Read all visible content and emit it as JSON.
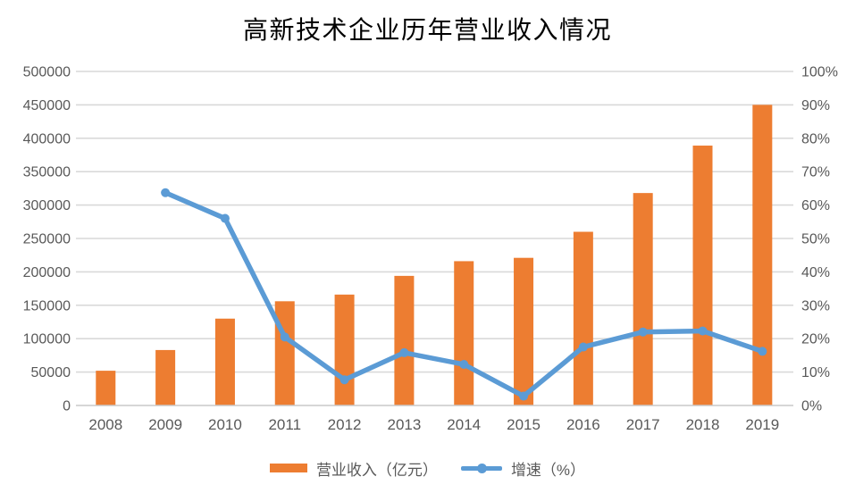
{
  "chart_data": {
    "type": "combo-bar-line",
    "title": "高新技术企业历年营业收入情况",
    "categories": [
      "2008",
      "2009",
      "2010",
      "2011",
      "2012",
      "2013",
      "2014",
      "2015",
      "2016",
      "2017",
      "2018",
      "2019"
    ],
    "series": [
      {
        "name": "营业收入（亿元）",
        "type": "bar",
        "axis": "left",
        "color": "#ED7D31",
        "values": [
          52000,
          83000,
          130000,
          156000,
          166000,
          194000,
          216000,
          221000,
          260000,
          318000,
          389000,
          450000
        ]
      },
      {
        "name": "增速（%）",
        "type": "line",
        "axis": "right",
        "color": "#5B9BD5",
        "values": [
          null,
          63.7,
          56.0,
          20.5,
          7.7,
          15.8,
          12.3,
          2.8,
          17.5,
          22.0,
          22.3,
          16.2
        ]
      }
    ],
    "left_axis": {
      "min": 0,
      "max": 500000,
      "step": 50000,
      "labels": [
        "0",
        "50000",
        "100000",
        "150000",
        "200000",
        "250000",
        "300000",
        "350000",
        "400000",
        "450000",
        "500000"
      ]
    },
    "right_axis": {
      "min": 0,
      "max": 100,
      "step": 10,
      "labels": [
        "0%",
        "10%",
        "20%",
        "30%",
        "40%",
        "50%",
        "60%",
        "70%",
        "80%",
        "90%",
        "100%"
      ]
    },
    "grid": true,
    "legend_position": "bottom"
  },
  "colors": {
    "bar": "#ED7D31",
    "line": "#5B9BD5",
    "gridline": "#D9D9D9",
    "axis_line": "#C9C9C9",
    "text": "#595959",
    "title_text": "#545454",
    "background": "#FFFFFF"
  }
}
